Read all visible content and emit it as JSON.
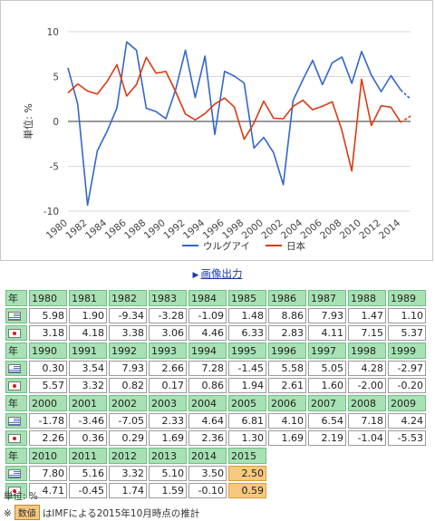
{
  "chart_data": {
    "type": "line",
    "ylabel": "単位: %",
    "ylim": [
      -10,
      10
    ],
    "yticks": [
      10,
      5,
      0,
      -5,
      -10
    ],
    "x": [
      1980,
      1981,
      1982,
      1983,
      1984,
      1985,
      1986,
      1987,
      1988,
      1989,
      1990,
      1991,
      1992,
      1993,
      1994,
      1995,
      1996,
      1997,
      1998,
      1999,
      2000,
      2001,
      2002,
      2003,
      2004,
      2005,
      2006,
      2007,
      2008,
      2009,
      2010,
      2011,
      2012,
      2013,
      2014,
      2015
    ],
    "xticks": [
      "1980",
      "1982",
      "1984",
      "1986",
      "1988",
      "1990",
      "1992",
      "1994",
      "1996",
      "1998",
      "2000",
      "2002",
      "2004",
      "2006",
      "2008",
      "2010",
      "2012",
      "2014"
    ],
    "series": [
      {
        "name": "ウルグアイ",
        "color": "#3366cc",
        "values": [
          5.98,
          1.9,
          -9.34,
          -3.28,
          -1.09,
          1.48,
          8.86,
          7.93,
          1.47,
          1.1,
          0.3,
          3.54,
          7.93,
          2.66,
          7.28,
          -1.45,
          5.58,
          5.05,
          4.28,
          -2.97,
          -1.78,
          -3.46,
          -7.05,
          2.33,
          4.64,
          6.81,
          4.1,
          6.54,
          7.18,
          4.24,
          7.8,
          5.16,
          3.32,
          5.1,
          3.5,
          2.5
        ]
      },
      {
        "name": "日本",
        "color": "#dc3912",
        "values": [
          3.18,
          4.18,
          3.38,
          3.06,
          4.46,
          6.33,
          2.83,
          4.11,
          7.15,
          5.37,
          5.57,
          3.32,
          0.82,
          0.17,
          0.86,
          1.94,
          2.61,
          1.6,
          -2.0,
          -0.2,
          2.26,
          0.36,
          0.29,
          1.69,
          2.36,
          1.3,
          1.69,
          2.19,
          -1.04,
          -5.53,
          4.71,
          -0.45,
          1.74,
          1.59,
          -0.1,
          0.59
        ]
      }
    ],
    "legend_position": "bottom",
    "estimated_from_year": 2015
  },
  "link": {
    "label": "画像出力"
  },
  "table": {
    "year_label": "年",
    "blocks": [
      {
        "years": [
          "1980",
          "1981",
          "1982",
          "1983",
          "1984",
          "1985",
          "1986",
          "1987",
          "1988",
          "1989"
        ],
        "uruguay": [
          "5.98",
          "1.90",
          "-9.34",
          "-3.28",
          "-1.09",
          "1.48",
          "8.86",
          "7.93",
          "1.47",
          "1.10"
        ],
        "japan": [
          "3.18",
          "4.18",
          "3.38",
          "3.06",
          "4.46",
          "6.33",
          "2.83",
          "4.11",
          "7.15",
          "5.37"
        ]
      },
      {
        "years": [
          "1990",
          "1991",
          "1992",
          "1993",
          "1994",
          "1995",
          "1996",
          "1997",
          "1998",
          "1999"
        ],
        "uruguay": [
          "0.30",
          "3.54",
          "7.93",
          "2.66",
          "7.28",
          "-1.45",
          "5.58",
          "5.05",
          "4.28",
          "-2.97"
        ],
        "japan": [
          "5.57",
          "3.32",
          "0.82",
          "0.17",
          "0.86",
          "1.94",
          "2.61",
          "1.60",
          "-2.00",
          "-0.20"
        ]
      },
      {
        "years": [
          "2000",
          "2001",
          "2002",
          "2003",
          "2004",
          "2005",
          "2006",
          "2007",
          "2008",
          "2009"
        ],
        "uruguay": [
          "-1.78",
          "-3.46",
          "-7.05",
          "2.33",
          "4.64",
          "6.81",
          "4.10",
          "6.54",
          "7.18",
          "4.24"
        ],
        "japan": [
          "2.26",
          "0.36",
          "0.29",
          "1.69",
          "2.36",
          "1.30",
          "1.69",
          "2.19",
          "-1.04",
          "-5.53"
        ]
      },
      {
        "years": [
          "2010",
          "2011",
          "2012",
          "2013",
          "2014",
          "2015"
        ],
        "uruguay": [
          "7.80",
          "5.16",
          "3.32",
          "5.10",
          "3.50",
          "2.50"
        ],
        "japan": [
          "4.71",
          "-0.45",
          "1.74",
          "1.59",
          "-0.10",
          "0.59"
        ]
      }
    ],
    "estimated_years": [
      "2015"
    ]
  },
  "notes": {
    "unit": "単位: %",
    "est_prefix": "※",
    "est_badge": "数値",
    "est_text": "はIMFによる2015年10月時点の推計"
  }
}
